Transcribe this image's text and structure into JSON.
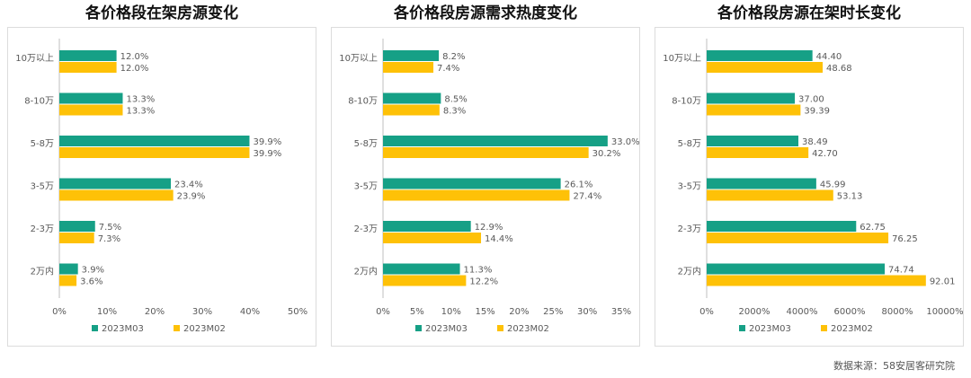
{
  "chart_data": [
    {
      "type": "bar",
      "orientation": "horizontal",
      "title": "各价格段在架房源变化",
      "categories": [
        "10万以上",
        "8-10万",
        "5-8万",
        "3-5万",
        "2-3万",
        "2万内"
      ],
      "series": [
        {
          "name": "2023M03",
          "values": [
            12.0,
            13.3,
            39.9,
            23.4,
            7.5,
            3.9
          ],
          "labels": [
            "12.0%",
            "13.3%",
            "39.9%",
            "23.4%",
            "7.5%",
            "3.9%"
          ]
        },
        {
          "name": "2023M02",
          "values": [
            12.0,
            13.3,
            39.9,
            23.9,
            7.3,
            3.6
          ],
          "labels": [
            "12.0%",
            "13.3%",
            "39.9%",
            "23.9%",
            "7.3%",
            "3.6%"
          ]
        }
      ],
      "xlim": [
        0,
        50
      ],
      "ticks": [
        "0%",
        "10%",
        "20%",
        "30%",
        "40%",
        "50%"
      ],
      "grid": false,
      "legend_position": "bottom"
    },
    {
      "type": "bar",
      "orientation": "horizontal",
      "title": "各价格段房源需求热度变化",
      "categories": [
        "10万以上",
        "8-10万",
        "5-8万",
        "3-5万",
        "2-3万",
        "2万内"
      ],
      "series": [
        {
          "name": "2023M03",
          "values": [
            8.2,
            8.5,
            33.0,
            26.1,
            12.9,
            11.3
          ],
          "labels": [
            "8.2%",
            "8.5%",
            "33.0%",
            "26.1%",
            "12.9%",
            "11.3%"
          ]
        },
        {
          "name": "2023M02",
          "values": [
            7.4,
            8.3,
            30.2,
            27.4,
            14.4,
            12.2
          ],
          "labels": [
            "7.4%",
            "8.3%",
            "30.2%",
            "27.4%",
            "14.4%",
            "12.2%"
          ]
        }
      ],
      "xlim": [
        0,
        35
      ],
      "ticks": [
        "0%",
        "5%",
        "10%",
        "15%",
        "20%",
        "25%",
        "30%",
        "35%"
      ],
      "grid": false,
      "legend_position": "bottom"
    },
    {
      "type": "bar",
      "orientation": "horizontal",
      "title": "各价格段房源在架时长变化",
      "categories": [
        "10万以上",
        "8-10万",
        "5-8万",
        "3-5万",
        "2-3万",
        "2万内"
      ],
      "series": [
        {
          "name": "2023M03",
          "values": [
            44.4,
            37.0,
            38.49,
            45.99,
            62.75,
            74.74
          ],
          "labels": [
            "44.40",
            "37.00",
            "38.49",
            "45.99",
            "62.75",
            "74.74"
          ]
        },
        {
          "name": "2023M02",
          "values": [
            48.68,
            39.39,
            42.7,
            53.13,
            76.25,
            92.01
          ],
          "labels": [
            "48.68",
            "39.39",
            "42.70",
            "53.13",
            "76.25",
            "92.01"
          ]
        }
      ],
      "xlim": [
        0,
        100
      ],
      "ticks": [
        "0%",
        "2000%",
        "4000%",
        "6000%",
        "8000%",
        "10000%"
      ],
      "grid": false,
      "legend_position": "bottom"
    }
  ],
  "colors": {
    "2023M03": "#16a086",
    "2023M02": "#fec107",
    "axis": "#bfbfbf",
    "text": "#595959"
  },
  "source": "数据来源：58安居客研究院"
}
